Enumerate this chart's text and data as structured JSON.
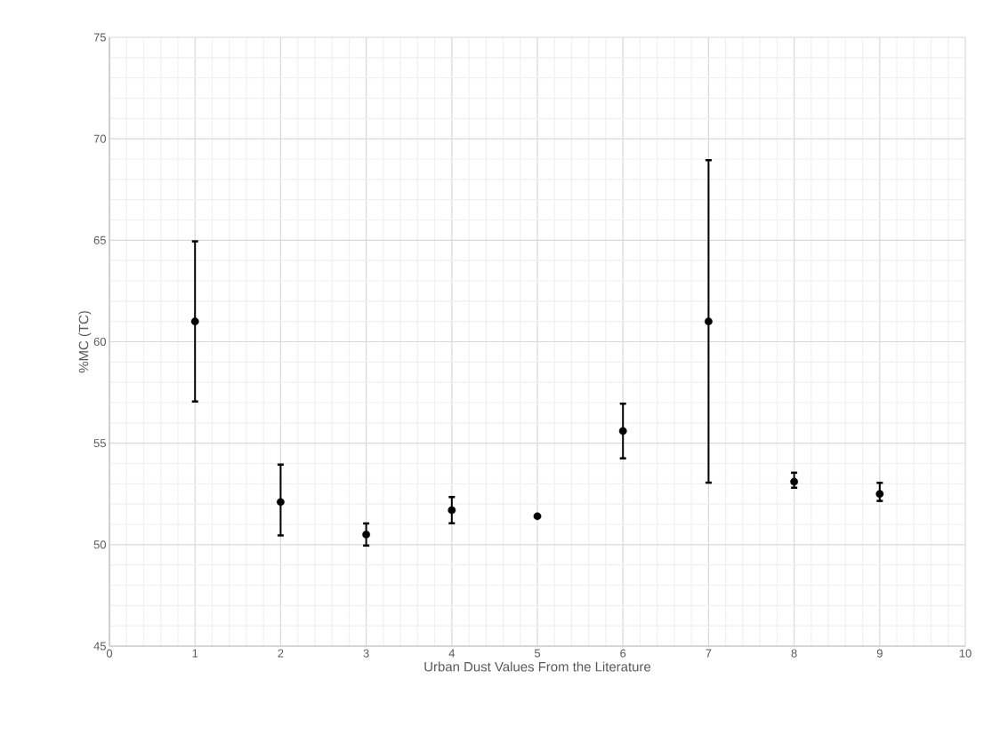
{
  "chart_data": {
    "type": "scatter",
    "xlabel": "Urban Dust Values From the Literature",
    "ylabel": "%MC  (TC)",
    "x": [
      1,
      2,
      3,
      4,
      5,
      6,
      7,
      8,
      9
    ],
    "values": [
      61.0,
      52.1,
      50.5,
      51.7,
      51.4,
      55.6,
      61.0,
      53.1,
      52.5
    ],
    "errors": [
      [
        57.0,
        65.0
      ],
      [
        50.4,
        54.0
      ],
      [
        49.9,
        51.1
      ],
      [
        51.0,
        52.4
      ],
      null,
      [
        54.2,
        57.0
      ],
      [
        53.0,
        69.0
      ],
      [
        52.75,
        53.6
      ],
      [
        52.1,
        53.1
      ]
    ],
    "color": "#000000",
    "marker": "circle",
    "xlim": [
      0,
      10
    ],
    "ylim": [
      45,
      75
    ],
    "xticks": [
      0,
      1,
      2,
      3,
      4,
      5,
      6,
      7,
      8,
      9,
      10
    ],
    "yticks": [
      45,
      50,
      55,
      60,
      65,
      70,
      75
    ],
    "grid": true
  }
}
